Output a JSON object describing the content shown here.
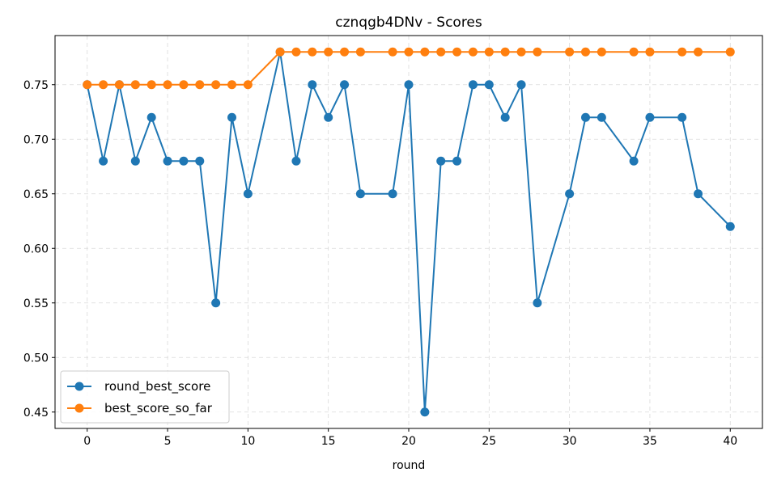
{
  "chart_data": {
    "type": "line",
    "title": "cznqgb4DNv - Scores",
    "xlabel": "round",
    "ylabel": "",
    "xlim": [
      -2,
      42
    ],
    "ylim": [
      0.435,
      0.795
    ],
    "xticks": [
      0,
      5,
      10,
      15,
      20,
      25,
      30,
      35,
      40
    ],
    "yticks": [
      0.45,
      0.5,
      0.55,
      0.6,
      0.65,
      0.7,
      0.75
    ],
    "grid": true,
    "legend_position": "lower-left",
    "series": [
      {
        "name": "round_best_score",
        "color": "#1f77b4",
        "x": [
          0,
          1,
          2,
          3,
          4,
          5,
          6,
          7,
          8,
          9,
          10,
          12,
          13,
          14,
          15,
          16,
          17,
          19,
          20,
          21,
          22,
          23,
          24,
          25,
          26,
          27,
          28,
          30,
          31,
          32,
          34,
          35,
          37,
          38,
          40
        ],
        "y": [
          0.75,
          0.68,
          0.75,
          0.68,
          0.72,
          0.68,
          0.68,
          0.68,
          0.55,
          0.72,
          0.65,
          0.78,
          0.68,
          0.75,
          0.72,
          0.75,
          0.65,
          0.65,
          0.75,
          0.45,
          0.68,
          0.68,
          0.75,
          0.75,
          0.72,
          0.75,
          0.55,
          0.65,
          0.72,
          0.72,
          0.68,
          0.72,
          0.72,
          0.65,
          0.62
        ]
      },
      {
        "name": "best_score_so_far",
        "color": "#ff7f0e",
        "x": [
          0,
          1,
          2,
          3,
          4,
          5,
          6,
          7,
          8,
          9,
          10,
          12,
          13,
          14,
          15,
          16,
          17,
          19,
          20,
          21,
          22,
          23,
          24,
          25,
          26,
          27,
          28,
          30,
          31,
          32,
          34,
          35,
          37,
          38,
          40
        ],
        "y": [
          0.75,
          0.75,
          0.75,
          0.75,
          0.75,
          0.75,
          0.75,
          0.75,
          0.75,
          0.75,
          0.75,
          0.78,
          0.78,
          0.78,
          0.78,
          0.78,
          0.78,
          0.78,
          0.78,
          0.78,
          0.78,
          0.78,
          0.78,
          0.78,
          0.78,
          0.78,
          0.78,
          0.78,
          0.78,
          0.78,
          0.78,
          0.78,
          0.78,
          0.78,
          0.78
        ]
      }
    ]
  }
}
